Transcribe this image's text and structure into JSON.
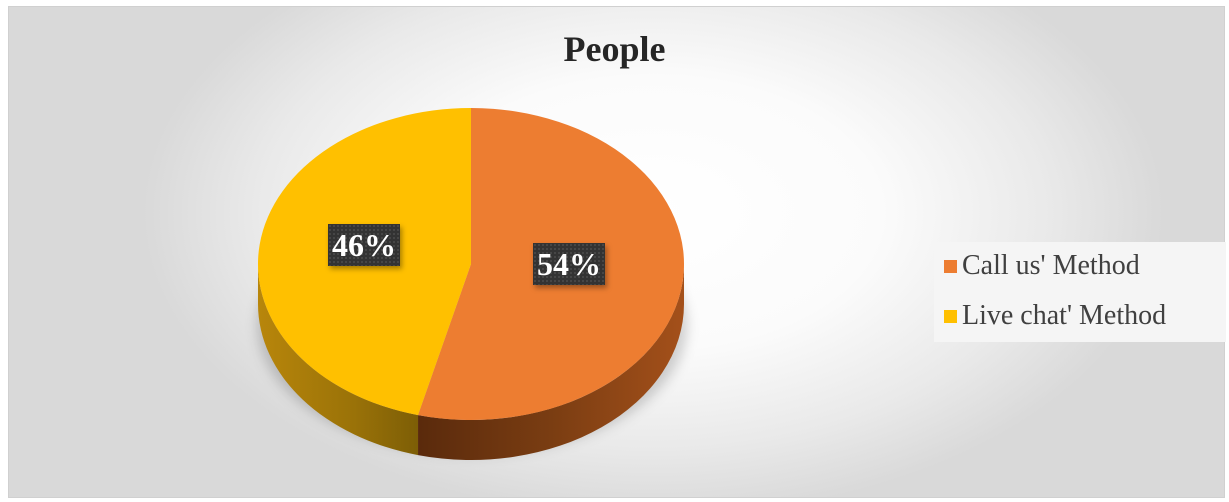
{
  "chart_data": {
    "type": "pie",
    "title": "People",
    "categories": [
      "Call us' Method",
      "Live chat' Method"
    ],
    "values": [
      54,
      46
    ],
    "labels": [
      "54%",
      "46%"
    ],
    "colors": [
      "#ed7d31",
      "#ffc000"
    ],
    "legend_position": "right"
  }
}
